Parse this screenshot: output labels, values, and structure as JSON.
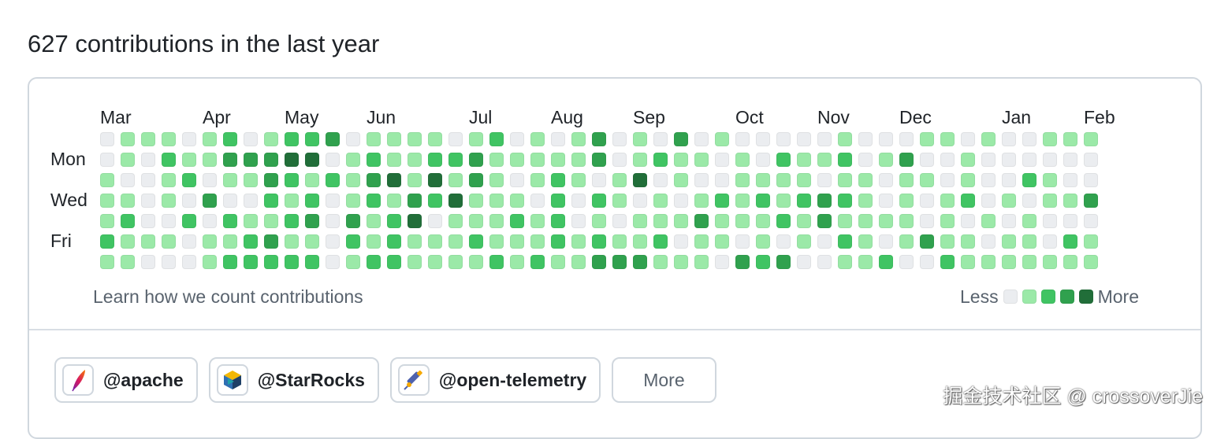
{
  "header": {
    "title": "627 contributions in the last year"
  },
  "calendar": {
    "months": [
      {
        "label": "Mar",
        "week": 0
      },
      {
        "label": "Apr",
        "week": 5
      },
      {
        "label": "May",
        "week": 9
      },
      {
        "label": "Jun",
        "week": 13
      },
      {
        "label": "Jul",
        "week": 18
      },
      {
        "label": "Aug",
        "week": 22
      },
      {
        "label": "Sep",
        "week": 26
      },
      {
        "label": "Oct",
        "week": 31
      },
      {
        "label": "Nov",
        "week": 35
      },
      {
        "label": "Dec",
        "week": 39
      },
      {
        "label": "Jan",
        "week": 44
      },
      {
        "label": "Feb",
        "week": 48
      }
    ],
    "day_labels": [
      {
        "label": "Mon",
        "day": 1
      },
      {
        "label": "Wed",
        "day": 3
      },
      {
        "label": "Fri",
        "day": 5
      }
    ],
    "levels": [
      "0111012012230111101201013010301000001000110100111",
      "0102113334401211223111113012110102112013001000000",
      "1001201132121341413101210140100111101101101002100",
      "1101030021201213241110202101012121232101012010113",
      "1200202112303124011121201011131112131111010101000",
      "2111011231102121112111212112011010102101311011021",
      "1100012222201221111212113331110323001120021111111"
    ],
    "colors": [
      "#ebedf0",
      "#9be9a8",
      "#40c463",
      "#30a14e",
      "#216e39"
    ],
    "learn_link": "Learn how we count contributions",
    "legend": {
      "less": "Less",
      "more": "More"
    }
  },
  "organizations": {
    "items": [
      {
        "name": "@apache",
        "icon": "apache-feather-icon"
      },
      {
        "name": "@StarRocks",
        "icon": "starrocks-logo-icon"
      },
      {
        "name": "@open-telemetry",
        "icon": "telescope-icon"
      }
    ],
    "more_label": "More"
  },
  "watermark": "掘金技术社区 @ crossoverJie"
}
